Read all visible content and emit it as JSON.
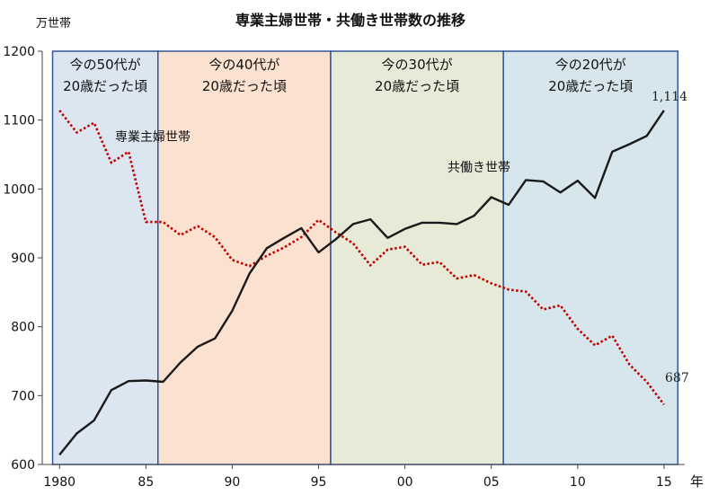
{
  "chart_data": {
    "type": "line",
    "title": "専業主婦世帯・共働き世帯数の推移",
    "unit_label": "万世帯",
    "x_suffix": "年",
    "xlim": [
      1980,
      2015
    ],
    "ylim": [
      600,
      1200
    ],
    "y_ticks": [
      600,
      700,
      800,
      900,
      1000,
      1100,
      1200
    ],
    "x_ticks": [
      {
        "value": 1980,
        "label": "1980"
      },
      {
        "value": 1985,
        "label": "85"
      },
      {
        "value": 1990,
        "label": "90"
      },
      {
        "value": 1995,
        "label": "95"
      },
      {
        "value": 2000,
        "label": "00"
      },
      {
        "value": 2005,
        "label": "05"
      },
      {
        "value": 2010,
        "label": "10"
      },
      {
        "value": 2015,
        "label": "15"
      }
    ],
    "grid": false,
    "eras": [
      {
        "from": 1979.6,
        "to": 1985.7,
        "line1": "今の50代が",
        "line2": "20歳だった頃",
        "color": "#dbe6f1",
        "edge": "#2f5597"
      },
      {
        "from": 1985.7,
        "to": 1995.7,
        "line1": "今の40代が",
        "line2": "20歳だった頃",
        "color": "#fbe1cf",
        "edge": "#2f5597"
      },
      {
        "from": 1995.7,
        "to": 2005.7,
        "line1": "今の30代が",
        "line2": "20歳だった頃",
        "color": "#e6ead7",
        "edge": "#2f5597"
      },
      {
        "from": 2005.7,
        "to": 2015.8,
        "line1": "今の20代が",
        "line2": "20歳だった頃",
        "color": "#d6e6ec",
        "edge": "#2f5597"
      }
    ],
    "x": [
      1980,
      1981,
      1982,
      1983,
      1984,
      1985,
      1986,
      1987,
      1988,
      1989,
      1990,
      1991,
      1992,
      1993,
      1994,
      1995,
      1996,
      1997,
      1998,
      1999,
      2000,
      2001,
      2002,
      2003,
      2004,
      2005,
      2006,
      2007,
      2008,
      2009,
      2010,
      2011,
      2012,
      2013,
      2014,
      2015
    ],
    "series": [
      {
        "name": "専業主婦世帯",
        "color": "#c00000",
        "dash": "dotted",
        "values": [
          1114,
          1082,
          1096,
          1038,
          1054,
          952,
          952,
          933,
          946,
          930,
          897,
          888,
          903,
          915,
          930,
          955,
          937,
          921,
          889,
          912,
          916,
          890,
          894,
          870,
          875,
          863,
          854,
          851,
          825,
          831,
          797,
          773,
          787,
          745,
          720,
          687
        ]
      },
      {
        "name": "共働き世帯",
        "color": "#1a1a1a",
        "dash": "solid",
        "values": [
          614,
          645,
          664,
          708,
          721,
          722,
          720,
          748,
          771,
          783,
          823,
          877,
          914,
          929,
          943,
          908,
          927,
          949,
          956,
          929,
          942,
          951,
          951,
          949,
          961,
          988,
          977,
          1013,
          1011,
          995,
          1012,
          987,
          1054,
          1065,
          1077,
          1114
        ]
      }
    ],
    "series_labels": [
      {
        "series": 0,
        "text": "専業主婦世帯"
      },
      {
        "series": 1,
        "text": "共働き世帯"
      }
    ],
    "end_labels": [
      {
        "series": 1,
        "text": "1,114"
      },
      {
        "series": 0,
        "text": "687"
      }
    ]
  }
}
